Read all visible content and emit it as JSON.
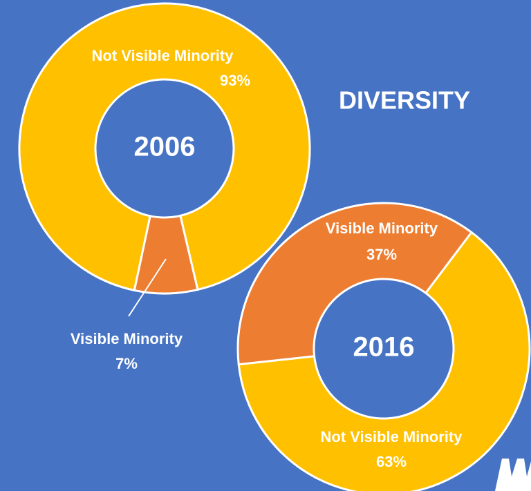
{
  "heading": "DIVERSITY",
  "chart_data": [
    {
      "type": "donut",
      "title": "2006",
      "categories": [
        "Not Visible Minority",
        "Visible Minority"
      ],
      "values": [
        93,
        7
      ],
      "value_labels": [
        "93%",
        "7%"
      ],
      "colors": [
        "#ffc000",
        "#ed7d31"
      ]
    },
    {
      "type": "donut",
      "title": "2016",
      "categories": [
        "Visible Minority",
        "Not Visible Minority"
      ],
      "values": [
        37,
        63
      ],
      "value_labels": [
        "37%",
        "63%"
      ],
      "colors": [
        "#ed7d31",
        "#ffc000"
      ]
    }
  ]
}
